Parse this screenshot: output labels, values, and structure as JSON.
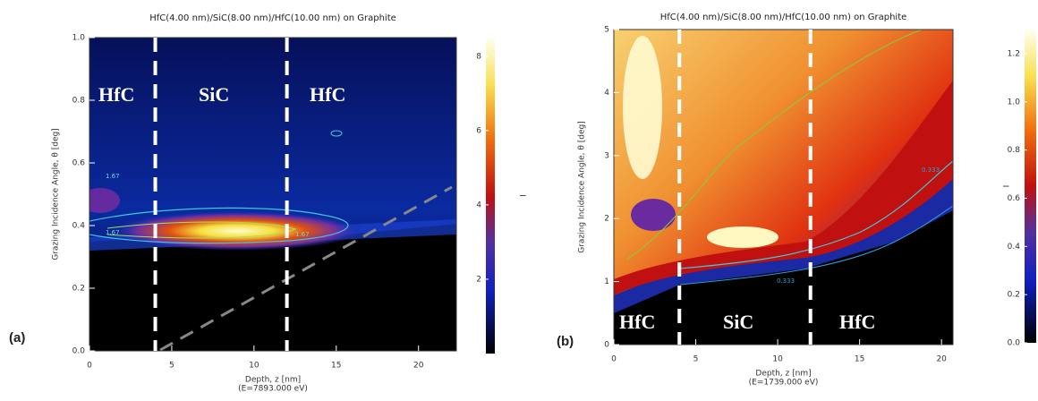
{
  "chart_data": [
    {
      "type": "heatmap",
      "panel_label": "(a)",
      "title": "HfC(4.00 nm)/SiC(8.00 nm)/HfC(10.00 nm) on Graphite",
      "x_label": "Depth, z [nm]",
      "x_note": "(E=7893.000 eV)",
      "y_label": "Grazing Incidence Angle, θ [deg]",
      "xlim": [
        0,
        22.3
      ],
      "xticks": [
        0,
        5,
        10,
        15,
        20
      ],
      "ylim": [
        0,
        1.0
      ],
      "yticks": [
        {
          "value": 0,
          "label": "0.0"
        },
        0.2,
        0.4,
        0.6,
        0.8,
        {
          "value": 1,
          "label": "1.0"
        }
      ],
      "colorbar": {
        "label": "I",
        "lim": [
          0,
          8.5
        ],
        "ticks": [
          2,
          4,
          6,
          8
        ]
      },
      "boundaries": [
        4,
        12
      ],
      "regions": [
        "HfC",
        "SiC",
        "HfC"
      ],
      "contour_labels": [
        "1.67",
        "1.67",
        "1.67"
      ]
    },
    {
      "type": "heatmap",
      "panel_label": "(b)",
      "title": "HfC(4.00 nm)/SiC(8.00 nm)/HfC(10.00 nm) on Graphite",
      "x_label": "Depth, z [nm]",
      "x_note": "(E=1739.000 eV)",
      "y_label": "Grazing Incidence Angle, θ [deg]",
      "xlim": [
        0,
        20.7
      ],
      "xticks": [
        0,
        5,
        10,
        15,
        20
      ],
      "ylim": [
        0,
        5
      ],
      "yticks": [
        0,
        1,
        2,
        3,
        4,
        5
      ],
      "colorbar": {
        "label": "I",
        "lim": [
          0,
          1.3
        ],
        "ticks": [
          {
            "value": 0,
            "label": "0.0"
          },
          0.2,
          0.4,
          0.6,
          0.8,
          {
            "value": 1,
            "label": "1.0"
          },
          1.2
        ]
      },
      "boundaries": [
        4,
        12
      ],
      "regions": [
        "HfC",
        "SiC",
        "HfC"
      ],
      "contour_labels": [
        "0.333",
        "0.333"
      ]
    }
  ]
}
